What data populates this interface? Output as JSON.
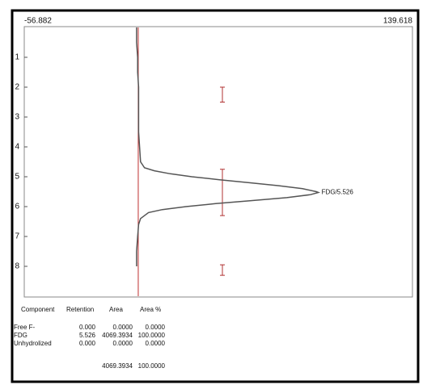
{
  "chart_data": {
    "type": "line",
    "ylim": [
      -56.882,
      139.618
    ],
    "xlim": [
      0,
      9
    ],
    "xticks": [
      1,
      2,
      3,
      4,
      5,
      6,
      7,
      8
    ],
    "x": [
      0,
      0.5,
      1,
      1.5,
      2,
      2.5,
      3,
      3.5,
      4,
      4.5,
      4.7,
      4.8,
      4.9,
      5.0,
      5.1,
      5.2,
      5.3,
      5.4,
      5.5,
      5.526,
      5.6,
      5.7,
      5.8,
      5.9,
      6.0,
      6.1,
      6.2,
      6.4,
      6.6,
      7,
      7.5,
      8
    ],
    "values": [
      0,
      0,
      0.5,
      0.5,
      1,
      1,
      1,
      1,
      1.5,
      2,
      4,
      9,
      17,
      28,
      42,
      57,
      72,
      84,
      91,
      92,
      88,
      76,
      58,
      40,
      25,
      13,
      6,
      2,
      1,
      0.5,
      0,
      0
    ],
    "color": "#555555",
    "regions": [
      [
        2.0,
        2.5
      ],
      [
        4.75,
        6.3
      ],
      [
        7.95,
        8.3
      ]
    ],
    "region_color": "#b03030",
    "annotation": "FDG/5.526"
  },
  "table": {
    "columns": [
      "Component",
      "Retention",
      "Area",
      "Area %"
    ],
    "rows": [
      [
        "Free F-",
        "0.000",
        "0.0000",
        "0.0000"
      ],
      [
        "FDG",
        "5.526",
        "4069.3934",
        "100.0000"
      ],
      [
        "Unhydrolized",
        "0.000",
        "0.0000",
        "0.0000"
      ]
    ],
    "total": [
      "4069.3934",
      "100.0000"
    ]
  }
}
